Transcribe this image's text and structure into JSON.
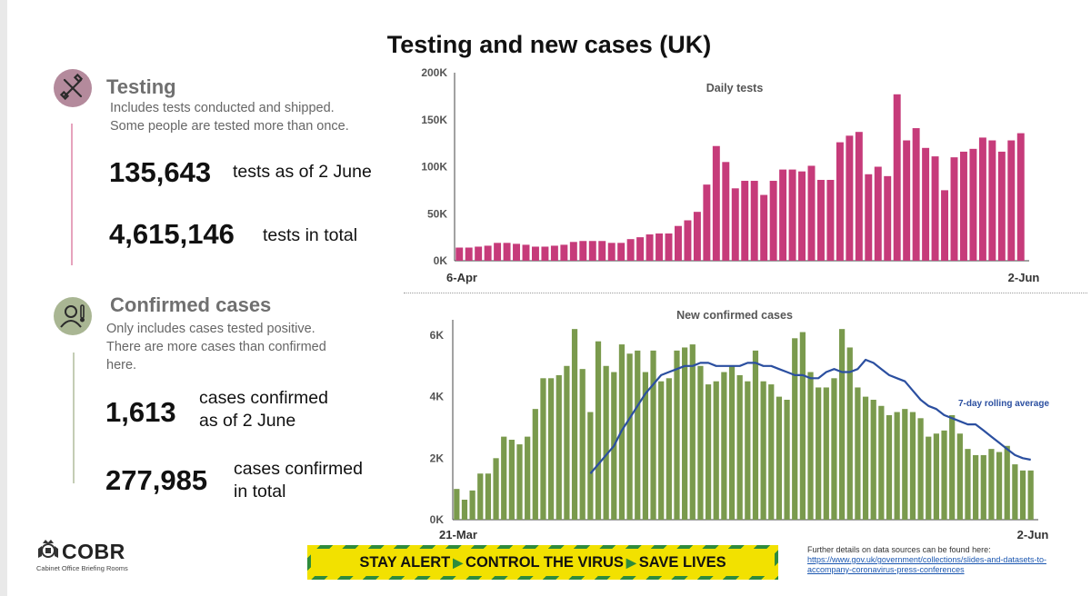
{
  "title": "Testing and new cases (UK)",
  "testing": {
    "heading": "Testing",
    "desc_line1": "Includes tests conducted and shipped.",
    "desc_line2": "Some people are tested more than once.",
    "stat1_value": "135,643",
    "stat1_label": "tests as of 2 June",
    "stat2_value": "4,615,146",
    "stat2_label": "tests in total",
    "icon": "test-tube-icon",
    "color": "#c63b7a"
  },
  "cases": {
    "heading": "Confirmed cases",
    "desc_line1": "Only includes cases tested positive.",
    "desc_line2": "There are more cases than confirmed",
    "desc_line3": "here.",
    "stat1_value": "1,613",
    "stat1_label_line1": "cases confirmed",
    "stat1_label_line2": "as of 2 June",
    "stat2_value": "277,985",
    "stat2_label_line1": "cases confirmed",
    "stat2_label_line2": "in total",
    "icon": "person-thermometer-icon",
    "color": "#7a9a4d"
  },
  "chart_data": [
    {
      "type": "bar",
      "title": "Daily tests",
      "x_start": "6-Apr",
      "x_end": "2-Jun",
      "yticks": [
        "0K",
        "50K",
        "100K",
        "150K",
        "200K"
      ],
      "ylim": [
        0,
        200000
      ],
      "bar_color": "#c63b7a",
      "values": [
        14000,
        14000,
        15000,
        16000,
        19000,
        19000,
        18000,
        17000,
        15000,
        15000,
        16000,
        17000,
        20000,
        21000,
        21000,
        21000,
        19000,
        19000,
        23000,
        25000,
        28000,
        29000,
        29000,
        37000,
        43000,
        52000,
        81000,
        122000,
        105000,
        77000,
        85000,
        85000,
        70000,
        85000,
        97000,
        97000,
        95000,
        101000,
        86000,
        86000,
        126000,
        133000,
        137000,
        92000,
        100000,
        90000,
        177000,
        128000,
        141000,
        120000,
        111000,
        75000,
        110000,
        116000,
        119000,
        131000,
        128000,
        116000,
        128000,
        135643
      ]
    },
    {
      "type": "bar",
      "title": "New confirmed cases",
      "x_start": "21-Mar",
      "x_end": "2-Jun",
      "yticks": [
        "0K",
        "2K",
        "4K",
        "6K"
      ],
      "ylim": [
        0,
        6500
      ],
      "bar_color": "#7a9a4d",
      "line_color": "#2b4fa0",
      "series": [
        {
          "name": "",
          "type": "bar",
          "values": [
            1000,
            650,
            950,
            1500,
            1500,
            2000,
            2700,
            2600,
            2450,
            2700,
            3600,
            4600,
            4600,
            4700,
            5000,
            6200,
            4900,
            3500,
            5800,
            5000,
            4800,
            5700,
            5400,
            5500,
            4800,
            5500,
            4500,
            4600,
            5500,
            5600,
            5700,
            5000,
            4400,
            4500,
            4800,
            5000,
            4700,
            4500,
            5500,
            4500,
            4400,
            4000,
            3900,
            5900,
            6100,
            4800,
            4300,
            4300,
            4600,
            6200,
            5600,
            4300,
            4000,
            3900,
            3700,
            3400,
            3500,
            3600,
            3500,
            3300,
            2700,
            2800,
            2900,
            3400,
            2800,
            2300,
            2100,
            2100,
            2300,
            2200,
            2400,
            1800,
            1600,
            1600
          ]
        },
        {
          "name": "7-day rolling average",
          "type": "line",
          "values": [
            1500,
            1800,
            2100,
            2400,
            2900,
            3300,
            3700,
            4100,
            4400,
            4700,
            4800,
            4900,
            5000,
            5000,
            5100,
            5100,
            5000,
            5000,
            5000,
            5000,
            5100,
            5100,
            5000,
            5000,
            4900,
            4800,
            4700,
            4700,
            4600,
            4600,
            4800,
            4900,
            4800,
            4800,
            4900,
            5200,
            5100,
            4900,
            4700,
            4600,
            4500,
            4200,
            3900,
            3700,
            3600,
            3400,
            3300,
            3200,
            3100,
            3100,
            2900,
            2700,
            2500,
            2300,
            2100,
            2000,
            1950
          ]
        }
      ]
    }
  ],
  "cobr": {
    "logo_text": "COBR",
    "subtitle": "Cabinet Office Briefing Rooms",
    "icon": "royal-crest-icon"
  },
  "banner": {
    "part1": "STAY ALERT",
    "part2": "CONTROL THE VIRUS",
    "part3": "SAVE LIVES",
    "arrow": "▶"
  },
  "footer": {
    "note": "Further details on data sources can be found here:",
    "link": "https://www.gov.uk/government/collections/slides-and-datasets-to-accompany-coronavirus-press-conferences"
  }
}
